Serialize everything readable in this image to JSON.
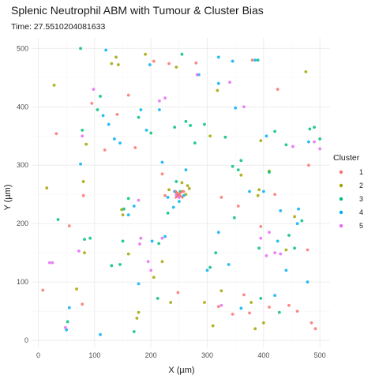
{
  "chart_data": {
    "type": "scatter",
    "title": "Splenic Neutrophil ABM with Tumour & Cluster Bias",
    "subtitle": "Time: 27.5510204081633",
    "xlabel": "X (µm)",
    "ylabel": "Y (µm)",
    "xlim": [
      -12,
      518
    ],
    "ylim": [
      -12,
      518
    ],
    "x_ticks": [
      0,
      100,
      200,
      300,
      400,
      500
    ],
    "y_ticks": [
      0,
      100,
      200,
      300,
      400,
      500
    ],
    "grid": true,
    "legend": {
      "title": "Cluster",
      "position": "right"
    },
    "center_marker": {
      "x": 250,
      "y": 250,
      "shape": "x",
      "color": "#F8766D"
    },
    "series": [
      {
        "name": "1",
        "color": "#F8766D",
        "points": [
          [
            8,
            86
          ],
          [
            32,
            354
          ],
          [
            55,
            196
          ],
          [
            78,
            62
          ],
          [
            80,
            248
          ],
          [
            95,
            406
          ],
          [
            118,
            326
          ],
          [
            140,
            387
          ],
          [
            160,
            420
          ],
          [
            172,
            330
          ],
          [
            205,
            478
          ],
          [
            220,
            285
          ],
          [
            225,
            248
          ],
          [
            232,
            474
          ],
          [
            245,
            252
          ],
          [
            248,
            82
          ],
          [
            258,
            255
          ],
          [
            280,
            475
          ],
          [
            320,
            58
          ],
          [
            325,
            245
          ],
          [
            345,
            45
          ],
          [
            355,
            230
          ],
          [
            365,
            78
          ],
          [
            375,
            47
          ],
          [
            380,
            480
          ],
          [
            395,
            195
          ],
          [
            410,
            57
          ],
          [
            420,
            250
          ],
          [
            425,
            430
          ],
          [
            445,
            60
          ],
          [
            460,
            50
          ],
          [
            478,
            155
          ],
          [
            480,
            300
          ],
          [
            485,
            30
          ],
          [
            492,
            20
          ]
        ]
      },
      {
        "name": "2",
        "color": "#A3A500",
        "points": [
          [
            15,
            261
          ],
          [
            28,
            437
          ],
          [
            68,
            88
          ],
          [
            80,
            272
          ],
          [
            82,
            150
          ],
          [
            85,
            336
          ],
          [
            130,
            474
          ],
          [
            138,
            485
          ],
          [
            142,
            472
          ],
          [
            148,
            224
          ],
          [
            150,
            215
          ],
          [
            160,
            148
          ],
          [
            175,
            38
          ],
          [
            178,
            48
          ],
          [
            190,
            490
          ],
          [
            205,
            108
          ],
          [
            220,
            135
          ],
          [
            232,
            258
          ],
          [
            235,
            65
          ],
          [
            245,
            468
          ],
          [
            255,
            270
          ],
          [
            262,
            250
          ],
          [
            265,
            265
          ],
          [
            268,
            260
          ],
          [
            295,
            65
          ],
          [
            305,
            350
          ],
          [
            310,
            25
          ],
          [
            318,
            428
          ],
          [
            325,
            85
          ],
          [
            360,
            283
          ],
          [
            378,
            65
          ],
          [
            385,
            20
          ],
          [
            390,
            248
          ],
          [
            392,
            258
          ],
          [
            395,
            342
          ],
          [
            400,
            30
          ],
          [
            410,
            290
          ],
          [
            440,
            155
          ],
          [
            455,
            212
          ],
          [
            475,
            460
          ]
        ]
      },
      {
        "name": "3",
        "color": "#00BF7D",
        "points": [
          [
            35,
            207
          ],
          [
            52,
            32
          ],
          [
            75,
            500
          ],
          [
            78,
            360
          ],
          [
            82,
            173
          ],
          [
            92,
            175
          ],
          [
            105,
            395
          ],
          [
            110,
            418
          ],
          [
            130,
            128
          ],
          [
            145,
            130
          ],
          [
            150,
            170
          ],
          [
            152,
            225
          ],
          [
            160,
            243
          ],
          [
            170,
            15
          ],
          [
            178,
            382
          ],
          [
            200,
            355
          ],
          [
            212,
            72
          ],
          [
            214,
            166
          ],
          [
            230,
            218
          ],
          [
            242,
            365
          ],
          [
            245,
            272
          ],
          [
            248,
            248
          ],
          [
            252,
            255
          ],
          [
            255,
            490
          ],
          [
            262,
            375
          ],
          [
            270,
            368
          ],
          [
            278,
            338
          ],
          [
            295,
            370
          ],
          [
            305,
            125
          ],
          [
            315,
            150
          ],
          [
            332,
            348
          ],
          [
            345,
            298
          ],
          [
            348,
            210
          ],
          [
            355,
            292
          ],
          [
            360,
            308
          ],
          [
            390,
            480
          ],
          [
            392,
            158
          ],
          [
            395,
            72
          ],
          [
            410,
            288
          ],
          [
            420,
            358
          ],
          [
            428,
            48
          ],
          [
            440,
            335
          ],
          [
            445,
            180
          ],
          [
            455,
            158
          ],
          [
            468,
            205
          ],
          [
            482,
            362
          ],
          [
            490,
            365
          ],
          [
            500,
            345
          ]
        ]
      },
      {
        "name": "4",
        "color": "#00B0F6",
        "points": [
          [
            50,
            18
          ],
          [
            55,
            56
          ],
          [
            75,
            302
          ],
          [
            110,
            10
          ],
          [
            115,
            385
          ],
          [
            120,
            497
          ],
          [
            125,
            370
          ],
          [
            135,
            345
          ],
          [
            145,
            338
          ],
          [
            160,
            215
          ],
          [
            170,
            230
          ],
          [
            178,
            97
          ],
          [
            182,
            395
          ],
          [
            192,
            360
          ],
          [
            198,
            472
          ],
          [
            202,
            170
          ],
          [
            215,
            395
          ],
          [
            220,
            305
          ],
          [
            225,
            178
          ],
          [
            230,
            245
          ],
          [
            240,
            228
          ],
          [
            242,
            255
          ],
          [
            250,
            238
          ],
          [
            258,
            248
          ],
          [
            262,
            292
          ],
          [
            285,
            455
          ],
          [
            300,
            120
          ],
          [
            320,
            485
          ],
          [
            320,
            440
          ],
          [
            320,
            185
          ],
          [
            338,
            130
          ],
          [
            345,
            478
          ],
          [
            350,
            398
          ],
          [
            360,
            55
          ],
          [
            375,
            255
          ],
          [
            385,
            480
          ],
          [
            400,
            255
          ],
          [
            405,
            350
          ],
          [
            420,
            77
          ],
          [
            425,
            170
          ],
          [
            430,
            222
          ],
          [
            440,
            120
          ],
          [
            460,
            200
          ],
          [
            462,
            225
          ],
          [
            478,
            100
          ],
          [
            480,
            340
          ]
        ]
      },
      {
        "name": "5",
        "color": "#E76BF3",
        "points": [
          [
            20,
            133
          ],
          [
            25,
            133
          ],
          [
            48,
            22
          ],
          [
            72,
            153
          ],
          [
            78,
            350
          ],
          [
            98,
            430
          ],
          [
            178,
            240
          ],
          [
            180,
            165
          ],
          [
            182,
            175
          ],
          [
            195,
            135
          ],
          [
            200,
            120
          ],
          [
            215,
            410
          ],
          [
            220,
            175
          ],
          [
            225,
            415
          ],
          [
            245,
            248
          ],
          [
            250,
            245
          ],
          [
            282,
            455
          ],
          [
            325,
            60
          ],
          [
            340,
            442
          ],
          [
            365,
            400
          ],
          [
            395,
            175
          ],
          [
            405,
            145
          ],
          [
            410,
            185
          ],
          [
            420,
            150
          ],
          [
            430,
            148
          ],
          [
            452,
            332
          ],
          [
            490,
            340
          ],
          [
            500,
            328
          ]
        ]
      }
    ]
  }
}
